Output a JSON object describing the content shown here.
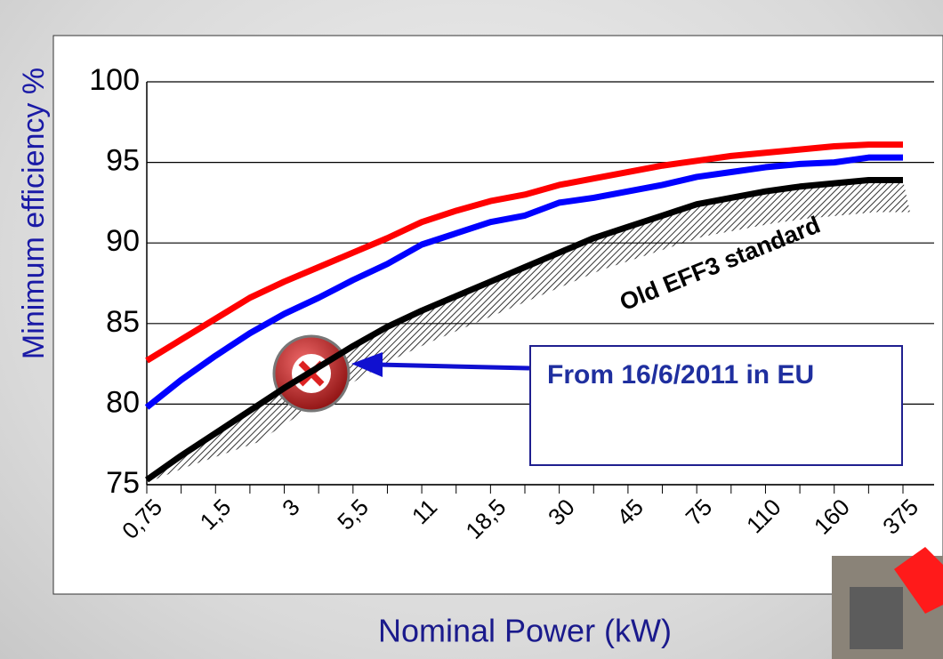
{
  "chart_data": {
    "type": "line",
    "x_label": "Nominal Power (kW)",
    "y_label": "Minimum efficiency %",
    "categories": [
      "0,75",
      null,
      "1,5",
      null,
      "3",
      null,
      "5,5",
      null,
      "11",
      null,
      "18,5",
      null,
      "30",
      null,
      "45",
      null,
      "75",
      null,
      "110",
      null,
      "160",
      null,
      "375"
    ],
    "series": [
      {
        "color": "#ff0000",
        "values": [
          82.7,
          84,
          85.3,
          86.6,
          87.6,
          88.5,
          89.4,
          90.3,
          91.3,
          92,
          92.6,
          93,
          93.6,
          94,
          94.4,
          94.8,
          95.1,
          95.4,
          95.6,
          95.8,
          96,
          96.1,
          96.1
        ]
      },
      {
        "color": "#0000ff",
        "values": [
          79.8,
          81.5,
          83,
          84.4,
          85.6,
          86.6,
          87.7,
          88.7,
          89.9,
          90.6,
          91.3,
          91.7,
          92.5,
          92.8,
          93.2,
          93.6,
          94.1,
          94.4,
          94.7,
          94.9,
          95,
          95.3,
          95.3
        ]
      },
      {
        "color": "#000000",
        "values": [
          75.3,
          76.8,
          78.2,
          79.6,
          81,
          82.3,
          83.6,
          84.8,
          85.8,
          86.7,
          87.6,
          88.5,
          89.4,
          90.3,
          91,
          91.7,
          92.4,
          92.8,
          93.2,
          93.5,
          93.7,
          93.9,
          93.9
        ]
      }
    ],
    "ylim": [
      75,
      100
    ],
    "yticks": [
      75,
      80,
      85,
      90,
      95,
      100
    ],
    "grid": true,
    "annotations": [
      "Old EFF3 standard",
      "From 16/6/2011 in EU"
    ]
  }
}
